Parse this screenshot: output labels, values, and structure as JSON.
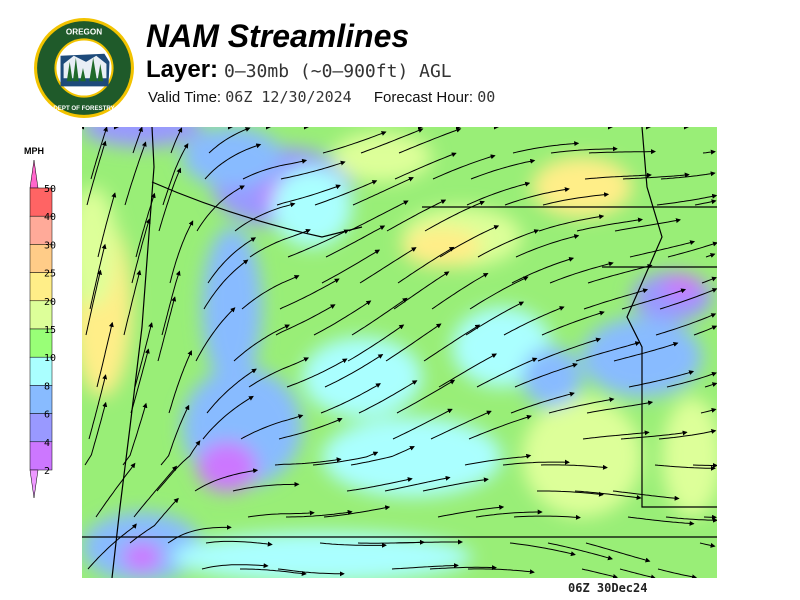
{
  "header": {
    "title": "NAM Streamlines",
    "layer_label": "Layer:",
    "layer_value": "0–30mb (~0–900ft) AGL",
    "valid_label": "Valid Time:",
    "valid_value": "06Z 12/30/2024",
    "forecast_label": "Forecast Hour:",
    "forecast_value": "00"
  },
  "logo": {
    "text_top": "OREGON",
    "text_bottom": "DEPARTMENT OF FORESTRY"
  },
  "legend": {
    "unit": "MPH",
    "ticks": [
      "50",
      "40",
      "30",
      "25",
      "20",
      "15",
      "10",
      "8",
      "6",
      "4",
      "2"
    ],
    "colors": [
      "#ff66cc",
      "#ff6464",
      "#ffaa99",
      "#ffcc88",
      "#ffee88",
      "#ddff99",
      "#99ff77",
      "#aaffff",
      "#88bbff",
      "#9999ff",
      "#cc77ff",
      "#ee99ff"
    ]
  },
  "map": {
    "stamp": "06Z 30Dec24",
    "base_color": "#99ee77"
  }
}
